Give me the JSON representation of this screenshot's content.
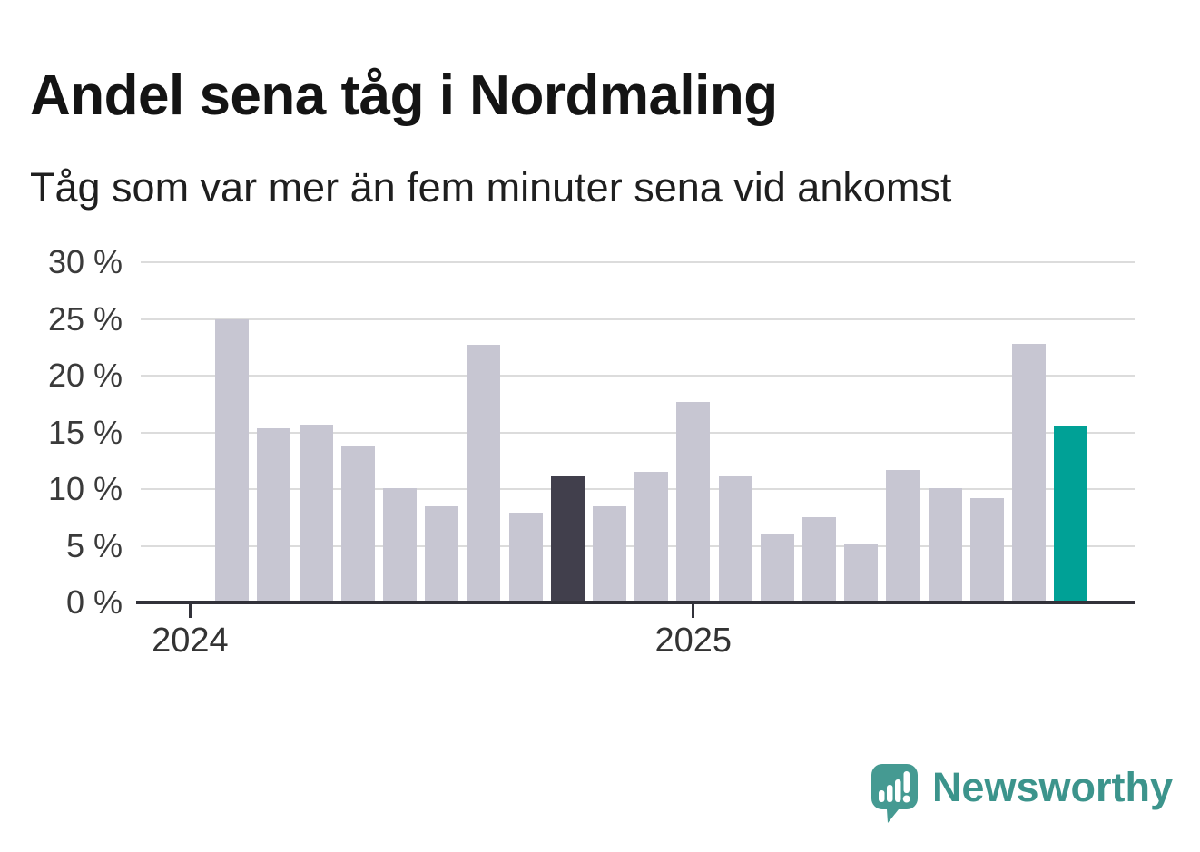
{
  "header": {
    "title": "Andel sena tåg i Nordmaling",
    "subtitle": "Tåg som var mer än fem minuter sena vid ankomst"
  },
  "branding": {
    "logo_text": "Newsworthy"
  },
  "colors": {
    "background": "#ffffff",
    "bar": "#c7c6d2",
    "bar_dark": "#413f4c",
    "bar_teal": "#00a196",
    "grid": "#dcdcdc",
    "axis": "#32323a",
    "logo_icon": "#459a92",
    "logo_text": "#3c948c"
  },
  "chart_data": {
    "type": "bar",
    "title": "Andel sena tåg i Nordmaling",
    "subtitle": "Tåg som var mer än fem minuter sena vid ankomst",
    "unit": "%",
    "ylim": [
      0,
      30
    ],
    "grid": true,
    "legend": "none",
    "yticks": [
      {
        "value": 0,
        "label": "0 %"
      },
      {
        "value": 5,
        "label": "5 %"
      },
      {
        "value": 10,
        "label": "10 %"
      },
      {
        "value": 15,
        "label": "15 %"
      },
      {
        "value": 20,
        "label": "20 %"
      },
      {
        "value": 25,
        "label": "25 %"
      },
      {
        "value": 30,
        "label": "30 %"
      }
    ],
    "xticks": [
      {
        "label": "2024",
        "slot": -1
      },
      {
        "label": "2025",
        "slot": 11
      }
    ],
    "bars": [
      {
        "value": 25.0,
        "highlight": "none"
      },
      {
        "value": 15.4,
        "highlight": "none"
      },
      {
        "value": 15.7,
        "highlight": "none"
      },
      {
        "value": 13.8,
        "highlight": "none"
      },
      {
        "value": 10.1,
        "highlight": "none"
      },
      {
        "value": 8.5,
        "highlight": "none"
      },
      {
        "value": 22.7,
        "highlight": "none"
      },
      {
        "value": 7.9,
        "highlight": "none"
      },
      {
        "value": 11.1,
        "highlight": "dark"
      },
      {
        "value": 8.5,
        "highlight": "none"
      },
      {
        "value": 11.5,
        "highlight": "none"
      },
      {
        "value": 17.7,
        "highlight": "none"
      },
      {
        "value": 11.1,
        "highlight": "none"
      },
      {
        "value": 6.1,
        "highlight": "none"
      },
      {
        "value": 7.5,
        "highlight": "none"
      },
      {
        "value": 5.1,
        "highlight": "none"
      },
      {
        "value": 11.7,
        "highlight": "none"
      },
      {
        "value": 10.1,
        "highlight": "none"
      },
      {
        "value": 9.2,
        "highlight": "none"
      },
      {
        "value": 22.8,
        "highlight": "none"
      },
      {
        "value": 15.6,
        "highlight": "latest"
      }
    ]
  }
}
